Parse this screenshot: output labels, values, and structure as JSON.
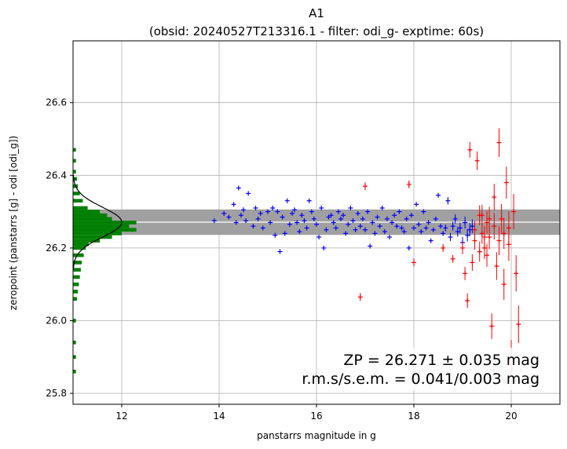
{
  "chart_data": {
    "type": "scatter",
    "title": "A1",
    "subtitle": "(obsid: 20240527T213316.1 - filter: odi_g- exptime: 60s)",
    "xlabel": "panstarrs magnitude in g",
    "ylabel": "zeropoint (panstarrs [g] - odi [odi_g])",
    "xlim": [
      11.0,
      21.0
    ],
    "ylim": [
      25.77,
      26.77
    ],
    "xticks": [
      "12",
      "14",
      "16",
      "18",
      "20"
    ],
    "yticks": [
      "25.8",
      "26.0",
      "26.2",
      "26.4",
      "26.6"
    ],
    "grid": true,
    "zeropoint": 26.271,
    "zp_band": [
      26.236,
      26.306
    ],
    "annotations": [
      "ZP = 26.271 ± 0.035 mag",
      "r.m.s/s.e.m. = 0.041/0.003 mag"
    ],
    "colors": {
      "used": "#0000ff",
      "rejected": "#ff0000",
      "histogram": "#008000",
      "band": "#a0a0a0",
      "zp_line": "#ffffff",
      "gaussian": "#000000",
      "grid": "#b0b0b0"
    },
    "histogram": {
      "bin_width": 0.01,
      "bins": [
        {
          "y": 25.86,
          "count": 0.06
        },
        {
          "y": 25.9,
          "count": 0.06
        },
        {
          "y": 25.94,
          "count": 0.06
        },
        {
          "y": 26.0,
          "count": 0.06
        },
        {
          "y": 26.06,
          "count": 0.08
        },
        {
          "y": 26.08,
          "count": 0.1
        },
        {
          "y": 26.1,
          "count": 0.12
        },
        {
          "y": 26.12,
          "count": 0.14
        },
        {
          "y": 26.14,
          "count": 0.16
        },
        {
          "y": 26.16,
          "count": 0.18
        },
        {
          "y": 26.18,
          "count": 0.22
        },
        {
          "y": 26.2,
          "count": 0.26
        },
        {
          "y": 26.21,
          "count": 0.32
        },
        {
          "y": 26.22,
          "count": 0.55
        },
        {
          "y": 26.23,
          "count": 0.8
        },
        {
          "y": 26.24,
          "count": 1.0
        },
        {
          "y": 26.25,
          "count": 1.3
        },
        {
          "y": 26.26,
          "count": 1.15
        },
        {
          "y": 26.27,
          "count": 1.3
        },
        {
          "y": 26.28,
          "count": 0.8
        },
        {
          "y": 26.29,
          "count": 0.7
        },
        {
          "y": 26.3,
          "count": 0.55
        },
        {
          "y": 26.31,
          "count": 0.3
        },
        {
          "y": 26.33,
          "count": 0.2
        },
        {
          "y": 26.35,
          "count": 0.14
        },
        {
          "y": 26.37,
          "count": 0.1
        },
        {
          "y": 26.39,
          "count": 0.08
        },
        {
          "y": 26.41,
          "count": 0.06
        },
        {
          "y": 26.44,
          "count": 0.06
        },
        {
          "y": 26.47,
          "count": 0.06
        }
      ]
    },
    "gaussian": {
      "mean": 26.271,
      "sigma": 0.041,
      "peak": 1.0
    },
    "series": [
      {
        "points": [
          [
            13.9,
            26.275
          ],
          [
            14.1,
            26.295
          ],
          [
            14.2,
            26.285
          ],
          [
            14.3,
            26.32
          ],
          [
            14.35,
            26.27
          ],
          [
            14.4,
            26.365
          ],
          [
            14.45,
            26.29
          ],
          [
            14.5,
            26.305
          ],
          [
            14.55,
            26.275
          ],
          [
            14.6,
            26.35
          ],
          [
            14.7,
            26.26
          ],
          [
            14.75,
            26.31
          ],
          [
            14.8,
            26.28
          ],
          [
            14.85,
            26.295
          ],
          [
            14.9,
            26.255
          ],
          [
            15.0,
            26.3
          ],
          [
            15.05,
            26.27
          ],
          [
            15.1,
            26.31
          ],
          [
            15.15,
            26.235
          ],
          [
            15.2,
            26.3
          ],
          [
            15.25,
            26.19
          ],
          [
            15.3,
            26.285
          ],
          [
            15.35,
            26.24
          ],
          [
            15.4,
            26.33
          ],
          [
            15.45,
            26.265
          ],
          [
            15.5,
            26.295
          ],
          [
            15.55,
            26.305
          ],
          [
            15.6,
            26.27
          ],
          [
            15.65,
            26.245
          ],
          [
            15.7,
            26.29
          ],
          [
            15.75,
            26.275
          ],
          [
            15.8,
            26.255
          ],
          [
            15.85,
            26.33
          ],
          [
            15.9,
            26.3
          ],
          [
            15.95,
            26.28
          ],
          [
            16.0,
            26.265
          ],
          [
            16.05,
            26.23
          ],
          [
            16.1,
            26.31
          ],
          [
            16.15,
            26.2
          ],
          [
            16.2,
            26.25
          ],
          [
            16.25,
            26.285
          ],
          [
            16.3,
            26.29
          ],
          [
            16.35,
            26.27
          ],
          [
            16.4,
            26.255
          ],
          [
            16.45,
            26.3
          ],
          [
            16.5,
            26.28
          ],
          [
            16.55,
            26.29
          ],
          [
            16.6,
            26.24
          ],
          [
            16.65,
            26.265
          ],
          [
            16.7,
            26.31
          ],
          [
            16.75,
            26.275
          ],
          [
            16.8,
            26.25
          ],
          [
            16.85,
            26.295
          ],
          [
            16.9,
            26.26
          ],
          [
            16.95,
            26.28
          ],
          [
            17.0,
            26.25
          ],
          [
            17.05,
            26.3
          ],
          [
            17.1,
            26.205
          ],
          [
            17.15,
            26.27
          ],
          [
            17.2,
            26.24
          ],
          [
            17.25,
            26.285
          ],
          [
            17.3,
            26.26
          ],
          [
            17.35,
            26.31
          ],
          [
            17.4,
            26.245
          ],
          [
            17.45,
            26.28
          ],
          [
            17.5,
            26.23
          ],
          [
            17.55,
            26.27
          ],
          [
            17.6,
            26.29
          ],
          [
            17.65,
            26.26
          ],
          [
            17.7,
            26.3
          ],
          [
            17.75,
            26.255
          ],
          [
            17.8,
            26.245
          ],
          [
            17.85,
            26.28
          ],
          [
            17.9,
            26.2
          ],
          [
            17.95,
            26.29
          ],
          [
            18.0,
            26.255
          ],
          [
            18.05,
            26.32
          ],
          [
            18.1,
            26.265
          ],
          [
            18.15,
            26.245
          ],
          [
            18.2,
            26.3
          ],
          [
            18.25,
            26.255
          ],
          [
            18.3,
            26.27
          ],
          [
            18.35,
            26.22
          ],
          [
            18.4,
            26.25
          ],
          [
            18.45,
            26.28
          ],
          [
            18.5,
            26.345
          ],
          [
            18.55,
            26.26
          ],
          [
            18.6,
            26.24
          ],
          [
            18.65,
            26.255
          ],
          [
            18.7,
            26.33
          ],
          [
            18.75,
            26.23
          ],
          [
            18.8,
            26.26
          ],
          [
            18.85,
            26.28
          ],
          [
            18.9,
            26.245
          ],
          [
            18.95,
            26.255
          ],
          [
            19.0,
            26.215
          ],
          [
            19.05,
            26.27
          ],
          [
            19.1,
            26.235
          ],
          [
            19.15,
            26.25
          ],
          [
            19.2,
            26.26
          ]
        ]
      },
      {
        "points": [
          [
            16.9,
            26.065
          ],
          [
            17.0,
            26.37
          ],
          [
            17.9,
            26.375
          ],
          [
            18.0,
            26.16
          ],
          [
            18.6,
            26.2
          ],
          [
            18.8,
            26.17
          ],
          [
            19.0,
            26.2
          ],
          [
            19.05,
            26.13
          ],
          [
            19.1,
            26.055
          ],
          [
            19.15,
            26.47
          ],
          [
            19.2,
            26.16
          ],
          [
            19.25,
            26.22
          ],
          [
            19.3,
            26.44
          ],
          [
            19.35,
            26.29
          ],
          [
            19.4,
            26.24
          ],
          [
            19.45,
            26.2
          ],
          [
            19.5,
            26.27
          ],
          [
            19.55,
            26.23
          ],
          [
            19.6,
            25.985
          ],
          [
            19.65,
            26.34
          ],
          [
            19.7,
            26.15
          ],
          [
            19.75,
            26.49
          ],
          [
            19.8,
            26.28
          ],
          [
            19.85,
            26.1
          ],
          [
            19.9,
            26.38
          ],
          [
            19.95,
            26.21
          ],
          [
            20.0,
            25.9
          ],
          [
            20.05,
            26.3
          ],
          [
            20.1,
            26.13
          ],
          [
            20.15,
            25.99
          ],
          [
            19.25,
            26.25
          ],
          [
            19.35,
            26.19
          ],
          [
            19.45,
            26.23
          ],
          [
            19.55,
            26.28
          ],
          [
            19.65,
            26.26
          ],
          [
            19.75,
            26.22
          ],
          [
            19.85,
            26.24
          ],
          [
            19.95,
            26.255
          ],
          [
            19.4,
            26.29
          ],
          [
            19.5,
            26.18
          ]
        ]
      }
    ]
  }
}
